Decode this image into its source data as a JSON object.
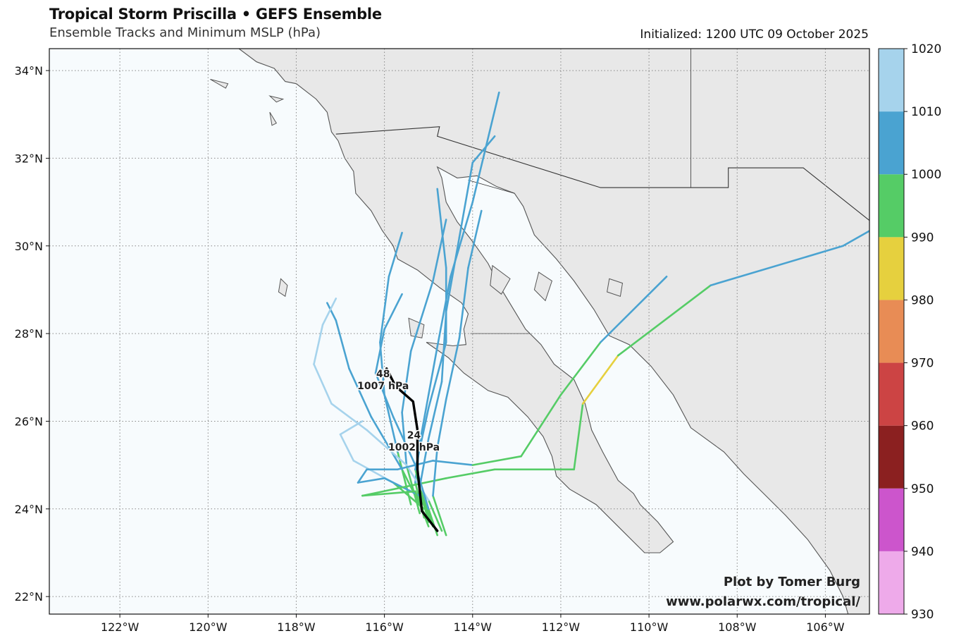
{
  "header": {
    "title": "Tropical Storm Priscilla • GEFS Ensemble",
    "subtitle": "Ensemble Tracks and Minimum MSLP (hPa)",
    "initialized": "Initialized: 1200 UTC 09 October 2025"
  },
  "credit": {
    "line1": "Plot by Tomer Burg",
    "line2": "www.polarwx.com/tropical/"
  },
  "map": {
    "lon_range": [
      -123.6,
      -105.0
    ],
    "lat_range": [
      21.6,
      34.5
    ],
    "lon_ticks": [
      {
        "value": -122,
        "label": "122°W"
      },
      {
        "value": -120,
        "label": "120°W"
      },
      {
        "value": -118,
        "label": "118°W"
      },
      {
        "value": -116,
        "label": "116°W"
      },
      {
        "value": -114,
        "label": "114°W"
      },
      {
        "value": -112,
        "label": "112°W"
      },
      {
        "value": -110,
        "label": "110°W"
      },
      {
        "value": -108,
        "label": "108°W"
      },
      {
        "value": -106,
        "label": "106°W"
      }
    ],
    "lat_ticks": [
      {
        "value": 22,
        "label": "22°N"
      },
      {
        "value": 24,
        "label": "24°N"
      },
      {
        "value": 26,
        "label": "26°N"
      },
      {
        "value": 28,
        "label": "28°N"
      },
      {
        "value": 30,
        "label": "30°N"
      },
      {
        "value": 32,
        "label": "32°N"
      },
      {
        "value": 34,
        "label": "34°N"
      }
    ],
    "colors": {
      "ocean": "#f7fbfd",
      "land": "#e8e8e8",
      "coast": "#555555",
      "border": "#333333",
      "grid": "#888888"
    }
  },
  "colorbar": {
    "levels": [
      930,
      940,
      950,
      960,
      970,
      980,
      990,
      1000,
      1010,
      1020
    ],
    "labels": [
      "930",
      "940",
      "950",
      "960",
      "970",
      "980",
      "990",
      "1000",
      "1010",
      "1020"
    ],
    "colors": [
      "#eeaaea",
      "#cc55cc",
      "#8b2020",
      "#cc4444",
      "#e88c55",
      "#e6d03e",
      "#55cc66",
      "#4aa3d1",
      "#a6d3ec"
    ]
  },
  "ensemble_mean": {
    "points": [
      [
        -114.8,
        23.5
      ],
      [
        -115.15,
        23.95
      ],
      [
        -115.25,
        24.9
      ],
      [
        -115.25,
        25.8
      ],
      [
        -115.35,
        26.45
      ],
      [
        -115.75,
        26.8
      ],
      [
        -115.95,
        27.2
      ]
    ],
    "labels": [
      {
        "hour": "24",
        "pressure": "1002 hPa",
        "lon": -115.25,
        "lat": 25.8
      },
      {
        "hour": "48",
        "pressure": "1007 hPa",
        "lon": -115.95,
        "lat": 27.2
      }
    ]
  },
  "chart_data": {
    "type": "map",
    "title": "Tropical Storm Priscilla • GEFS Ensemble",
    "subtitle": "Ensemble Tracks and Minimum MSLP (hPa)",
    "colorbar_label_range": [
      930,
      1020
    ],
    "tracks": [
      {
        "segments": [
          [
            [
              -115.1,
              23.8
            ],
            [
              -115.3,
              24.6
            ],
            [
              -115.2,
              25.5
            ],
            [
              -115.0,
              26.6
            ],
            [
              -114.8,
              27.7
            ],
            [
              -114.5,
              29.3
            ],
            [
              -114.0,
              31.0
            ],
            [
              -113.4,
              33.5
            ]
          ]
        ],
        "colors": [
          "#55cc66",
          "#4aa3d1",
          "#4aa3d1",
          "#4aa3d1",
          "#4aa3d1",
          "#4aa3d1",
          "#4aa3d1"
        ]
      },
      {
        "segments": [
          [
            [
              -114.9,
              23.6
            ],
            [
              -115.2,
              24.5
            ],
            [
              -115.0,
              25.6
            ],
            [
              -114.7,
              26.9
            ],
            [
              -114.6,
              28.5
            ],
            [
              -114.3,
              30.2
            ],
            [
              -114.0,
              31.9
            ],
            [
              -113.5,
              32.5
            ]
          ]
        ],
        "colors": [
          "#55cc66",
          "#4aa3d1",
          "#4aa3d1",
          "#4aa3d1",
          "#4aa3d1",
          "#4aa3d1",
          "#4aa3d1"
        ]
      },
      {
        "segments": [
          [
            [
              -115.0,
              23.7
            ],
            [
              -115.3,
              24.9
            ],
            [
              -115.0,
              26.3
            ],
            [
              -114.6,
              27.8
            ],
            [
              -114.6,
              29.5
            ],
            [
              -114.8,
              31.3
            ]
          ]
        ],
        "colors": [
          "#55cc66",
          "#4aa3d1",
          "#4aa3d1",
          "#4aa3d1",
          "#4aa3d1"
        ]
      },
      {
        "segments": [
          [
            [
              -115.2,
              23.9
            ],
            [
              -115.5,
              25.0
            ],
            [
              -115.6,
              26.2
            ],
            [
              -115.4,
              27.6
            ],
            [
              -114.9,
              29.2
            ],
            [
              -114.6,
              30.6
            ]
          ]
        ],
        "colors": [
          "#55cc66",
          "#4aa3d1",
          "#4aa3d1",
          "#4aa3d1",
          "#4aa3d1"
        ]
      },
      {
        "segments": [
          [
            [
              -115.4,
              24.1
            ],
            [
              -115.7,
              25.3
            ],
            [
              -116.0,
              26.6
            ],
            [
              -116.1,
              27.8
            ],
            [
              -115.9,
              29.3
            ],
            [
              -115.6,
              30.3
            ]
          ]
        ],
        "colors": [
          "#55cc66",
          "#4aa3d1",
          "#4aa3d1",
          "#4aa3d1",
          "#4aa3d1"
        ]
      },
      {
        "segments": [
          [
            [
              -115.1,
              23.9
            ],
            [
              -115.6,
              24.9
            ],
            [
              -116.3,
              26.1
            ],
            [
              -116.8,
              27.2
            ],
            [
              -117.1,
              28.3
            ],
            [
              -117.3,
              28.7
            ]
          ]
        ],
        "colors": [
          "#55cc66",
          "#4aa3d1",
          "#4aa3d1",
          "#4aa3d1",
          "#4aa3d1"
        ]
      },
      {
        "segments": [
          [
            [
              -114.7,
              23.5
            ],
            [
              -115.0,
              24.2
            ],
            [
              -115.5,
              25.0
            ],
            [
              -116.4,
              25.8
            ],
            [
              -117.2,
              26.4
            ],
            [
              -117.6,
              27.3
            ],
            [
              -117.4,
              28.2
            ],
            [
              -117.1,
              28.8
            ]
          ]
        ],
        "colors": [
          "#55cc66",
          "#a6d3ec",
          "#a6d3ec",
          "#a6d3ec",
          "#a6d3ec",
          "#a6d3ec",
          "#a6d3ec"
        ]
      },
      {
        "segments": [
          [
            [
              -115.1,
              24.0
            ],
            [
              -115.8,
              24.6
            ],
            [
              -116.7,
              25.1
            ],
            [
              -117.0,
              25.7
            ],
            [
              -116.5,
              26.0
            ]
          ]
        ],
        "colors": [
          "#55cc66",
          "#a6d3ec",
          "#a6d3ec",
          "#a6d3ec"
        ]
      },
      {
        "segments": [
          [
            [
              -114.9,
              23.6
            ],
            [
              -115.2,
              24.3
            ],
            [
              -116.0,
              24.7
            ],
            [
              -116.6,
              24.6
            ],
            [
              -116.4,
              24.9
            ],
            [
              -115.7,
              24.9
            ],
            [
              -114.9,
              25.1
            ],
            [
              -114.0,
              25.0
            ],
            [
              -112.9,
              25.2
            ],
            [
              -112.0,
              26.6
            ],
            [
              -111.1,
              27.8
            ],
            [
              -109.6,
              29.3
            ]
          ]
        ],
        "colors": [
          "#55cc66",
          "#4aa3d1",
          "#4aa3d1",
          "#4aa3d1",
          "#4aa3d1",
          "#4aa3d1",
          "#4aa3d1",
          "#55cc66",
          "#55cc66",
          "#55cc66",
          "#4aa3d1"
        ]
      },
      {
        "segments": [
          [
            [
              -115.0,
              23.6
            ],
            [
              -115.3,
              24.4
            ],
            [
              -116.5,
              24.3
            ],
            [
              -114.6,
              24.7
            ],
            [
              -113.5,
              24.9
            ],
            [
              -111.7,
              24.9
            ],
            [
              -111.5,
              26.4
            ],
            [
              -110.7,
              27.5
            ],
            [
              -108.6,
              29.1
            ],
            [
              -105.6,
              30.0
            ],
            [
              -104.9,
              30.4
            ]
          ]
        ],
        "colors": [
          "#55cc66",
          "#55cc66",
          "#55cc66",
          "#55cc66",
          "#55cc66",
          "#55cc66",
          "#e6d03e",
          "#55cc66",
          "#4aa3d1",
          "#4aa3d1"
        ]
      },
      {
        "segments": [
          [
            [
              -114.8,
              23.4
            ],
            [
              -115.0,
              24.0
            ],
            [
              -115.3,
              25.0
            ],
            [
              -115.8,
              26.1
            ],
            [
              -116.2,
              27.1
            ],
            [
              -116.0,
              28.1
            ],
            [
              -115.6,
              28.9
            ]
          ]
        ],
        "colors": [
          "#55cc66",
          "#4aa3d1",
          "#4aa3d1",
          "#4aa3d1",
          "#4aa3d1",
          "#4aa3d1"
        ]
      },
      {
        "segments": [
          [
            [
              -114.6,
              23.4
            ],
            [
              -114.9,
              24.3
            ],
            [
              -114.8,
              25.4
            ],
            [
              -114.6,
              26.5
            ],
            [
              -114.3,
              27.9
            ],
            [
              -114.1,
              29.5
            ],
            [
              -113.8,
              30.8
            ]
          ]
        ],
        "colors": [
          "#55cc66",
          "#4aa3d1",
          "#4aa3d1",
          "#4aa3d1",
          "#4aa3d1",
          "#4aa3d1"
        ]
      }
    ]
  }
}
